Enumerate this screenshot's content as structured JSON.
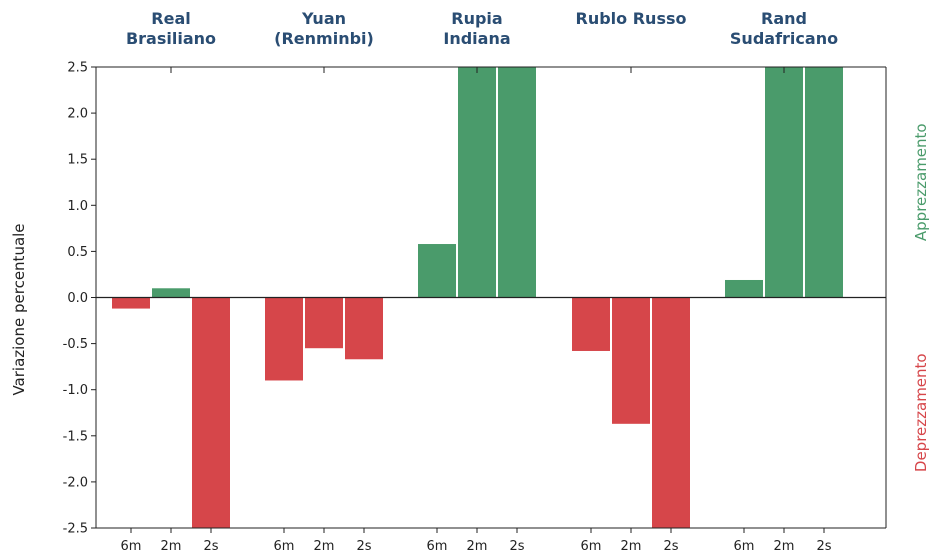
{
  "colors": {
    "positive": "#4a9b6b",
    "negative": "#d6464a",
    "title": "#2a4d73",
    "axis": "#222222"
  },
  "chart_data": {
    "type": "bar",
    "ylabel": "Variazione percentuale",
    "right_label_top": "Apprezzamento",
    "right_label_bottom": "Deprezzamento",
    "ylim": [
      -2.5,
      2.5
    ],
    "yticks": [
      "2.5",
      "2.0",
      "1.5",
      "1.0",
      "0.5",
      "0.0",
      "-0.5",
      "-1.0",
      "-1.5",
      "-2.0",
      "-2.5"
    ],
    "ytick_values": [
      2.5,
      2.0,
      1.5,
      1.0,
      0.5,
      0.0,
      -0.5,
      -1.0,
      -1.5,
      -2.0,
      -2.5
    ],
    "periods": [
      "6m",
      "2m",
      "2s"
    ],
    "groups": [
      {
        "name_lines": [
          "Real",
          "Brasiliano"
        ],
        "values": [
          -0.12,
          0.1,
          -2.5
        ]
      },
      {
        "name_lines": [
          "Yuan",
          "(Renminbi)"
        ],
        "values": [
          -0.9,
          -0.55,
          -0.67
        ]
      },
      {
        "name_lines": [
          "Rupia",
          "Indiana"
        ],
        "values": [
          0.58,
          2.5,
          2.5
        ]
      },
      {
        "name_lines": [
          "Rublo Russo"
        ],
        "values": [
          -0.58,
          -1.37,
          -2.5
        ]
      },
      {
        "name_lines": [
          "Rand",
          "Sudafricano"
        ],
        "values": [
          0.19,
          2.5,
          2.5
        ]
      }
    ],
    "grid": false
  }
}
